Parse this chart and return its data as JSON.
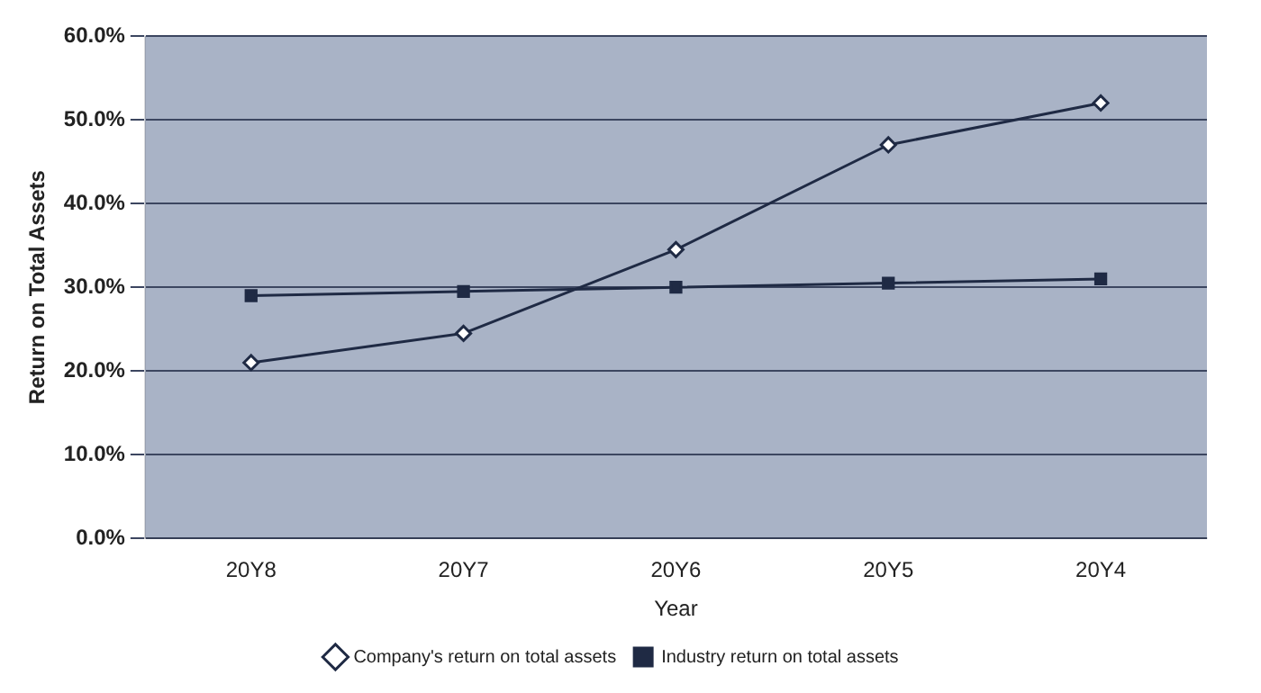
{
  "chart_data": {
    "type": "line",
    "xlabel": "Year",
    "ylabel": "Return on Total Assets",
    "categories": [
      "20Y8",
      "20Y7",
      "20Y6",
      "20Y5",
      "20Y4"
    ],
    "series": [
      {
        "name": "Company's return on total assets",
        "color": "#1f2a44",
        "marker": "diamond",
        "values": [
          21,
          24.5,
          34.5,
          47,
          52
        ]
      },
      {
        "name": "Industry return on total assets",
        "color": "#1f2a44",
        "marker": "square",
        "values": [
          29,
          29.5,
          30,
          30.5,
          31
        ]
      }
    ],
    "ylim": [
      0,
      60
    ],
    "yticks": [
      {
        "value": 0,
        "label": "0.0%"
      },
      {
        "value": 10,
        "label": "10.0%"
      },
      {
        "value": 20,
        "label": "20.0%"
      },
      {
        "value": 30,
        "label": "30.0%"
      },
      {
        "value": 40,
        "label": "40.0%"
      },
      {
        "value": 50,
        "label": "50.0%"
      },
      {
        "value": 60,
        "label": "60.0%"
      }
    ],
    "grid": "y",
    "legend": "bottom",
    "line_style": "solid"
  }
}
